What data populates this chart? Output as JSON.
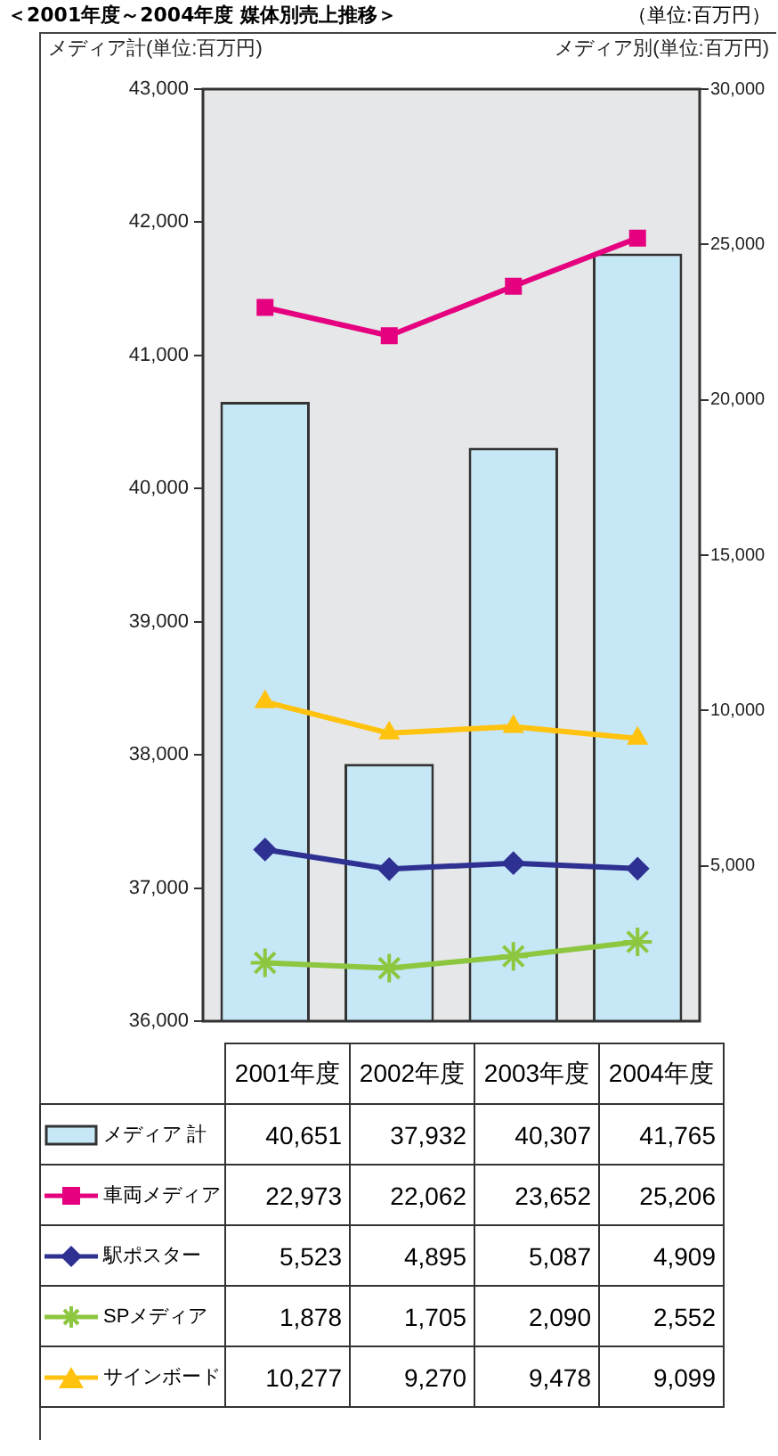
{
  "chart_data": {
    "type": "bar",
    "title": "＜2001年度～2004年度 媒体別売上推移＞",
    "subtitle": "（単位:百万円）",
    "ylabel": "メディア計(単位:百万円)",
    "y2label": "メディア別(単位:百万円)",
    "categories": [
      "2001年度",
      "2002年度",
      "2003年度",
      "2004年度"
    ],
    "ylim": [
      36000,
      43000
    ],
    "yticks": [
      {
        "value": 36000,
        "label": "36,000"
      },
      {
        "value": 37000,
        "label": "37,000"
      },
      {
        "value": 38000,
        "label": "38,000"
      },
      {
        "value": 39000,
        "label": "39,000"
      },
      {
        "value": 40000,
        "label": "40,000"
      },
      {
        "value": 41000,
        "label": "41,000"
      },
      {
        "value": 42000,
        "label": "42,000"
      },
      {
        "value": 43000,
        "label": "43,000"
      }
    ],
    "y2lim": [
      0,
      30000
    ],
    "y2ticks": [
      {
        "value": 5000,
        "label": "5,000"
      },
      {
        "value": 10000,
        "label": "10,000"
      },
      {
        "value": 15000,
        "label": "15,000"
      },
      {
        "value": 20000,
        "label": "20,000"
      },
      {
        "value": 25000,
        "label": "25,000"
      },
      {
        "value": 30000,
        "label": "30,000"
      }
    ],
    "grid": false,
    "legend": "bottom",
    "series": [
      {
        "name": "メディア 計",
        "color": "#c6e7f6",
        "values": [
          40651,
          37932,
          40307,
          41765
        ],
        "value_labels": [
          "40,651",
          "37,932",
          "40,307",
          "41,765"
        ]
      },
      {
        "name": "車両メディア",
        "type": "line",
        "axis": "y2",
        "marker": "square",
        "color": "#e5007f",
        "values": [
          22973,
          22062,
          23652,
          25206
        ],
        "value_labels": [
          "22,973",
          "22,062",
          "23,652",
          "25,206"
        ]
      },
      {
        "name": "駅ポスター",
        "type": "line",
        "axis": "y2",
        "marker": "diamond",
        "color": "#2e3192",
        "values": [
          5523,
          4895,
          5087,
          4909
        ],
        "value_labels": [
          "5,523",
          "4,895",
          "5,087",
          "4,909"
        ]
      },
      {
        "name": "SPメディア",
        "type": "line",
        "axis": "y2",
        "marker": "cross",
        "color": "#8dc63f",
        "values": [
          1878,
          1705,
          2090,
          2552
        ],
        "value_labels": [
          "1,878",
          "1,705",
          "2,090",
          "2,552"
        ]
      },
      {
        "name": "サインボード",
        "type": "line",
        "axis": "y2",
        "marker": "triangle",
        "color": "#ffc20e",
        "values": [
          10277,
          9270,
          9478,
          9099
        ],
        "value_labels": [
          "10,277",
          "9,270",
          "9,478",
          "9,099"
        ]
      }
    ]
  }
}
